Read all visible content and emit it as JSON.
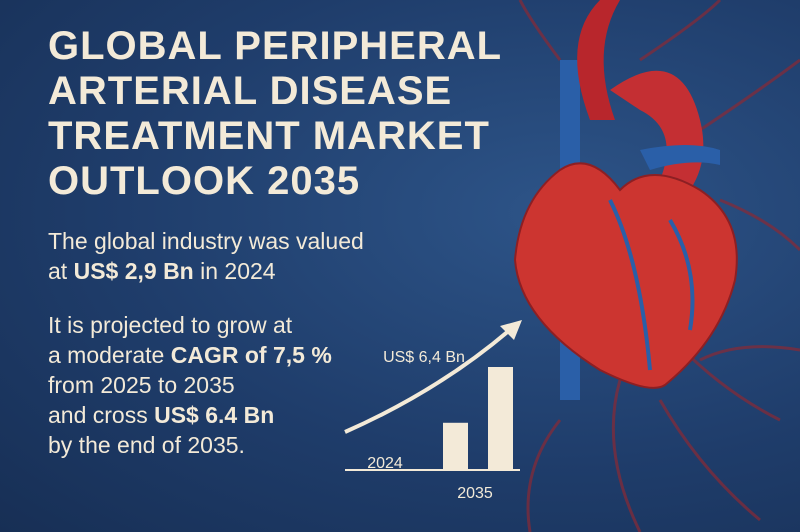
{
  "title": [
    "GLOBAL PERIPHERAL",
    "ARTERIAL DISEASE",
    "TREATMENT MARKET",
    "OUTLOOK 2035"
  ],
  "intro": [
    [
      "The global industry was valued"
    ],
    [
      "at ",
      "US$ 2,9 Bn",
      " in 2024"
    ]
  ],
  "projection": [
    [
      "It is projected to grow at"
    ],
    [
      "a moderate ",
      "CAGR of 7,5 %"
    ],
    [
      "from 2025 to 2035"
    ],
    [
      "and cross ",
      "US$ 6.4 Bn"
    ],
    [
      "by the end of 2035."
    ]
  ],
  "mini_chart": {
    "categories": [
      "2024",
      "2035"
    ],
    "values": [
      2.9,
      6.4
    ],
    "value_label": "US$ 6,4 Bn",
    "color": "#f3ead8"
  }
}
